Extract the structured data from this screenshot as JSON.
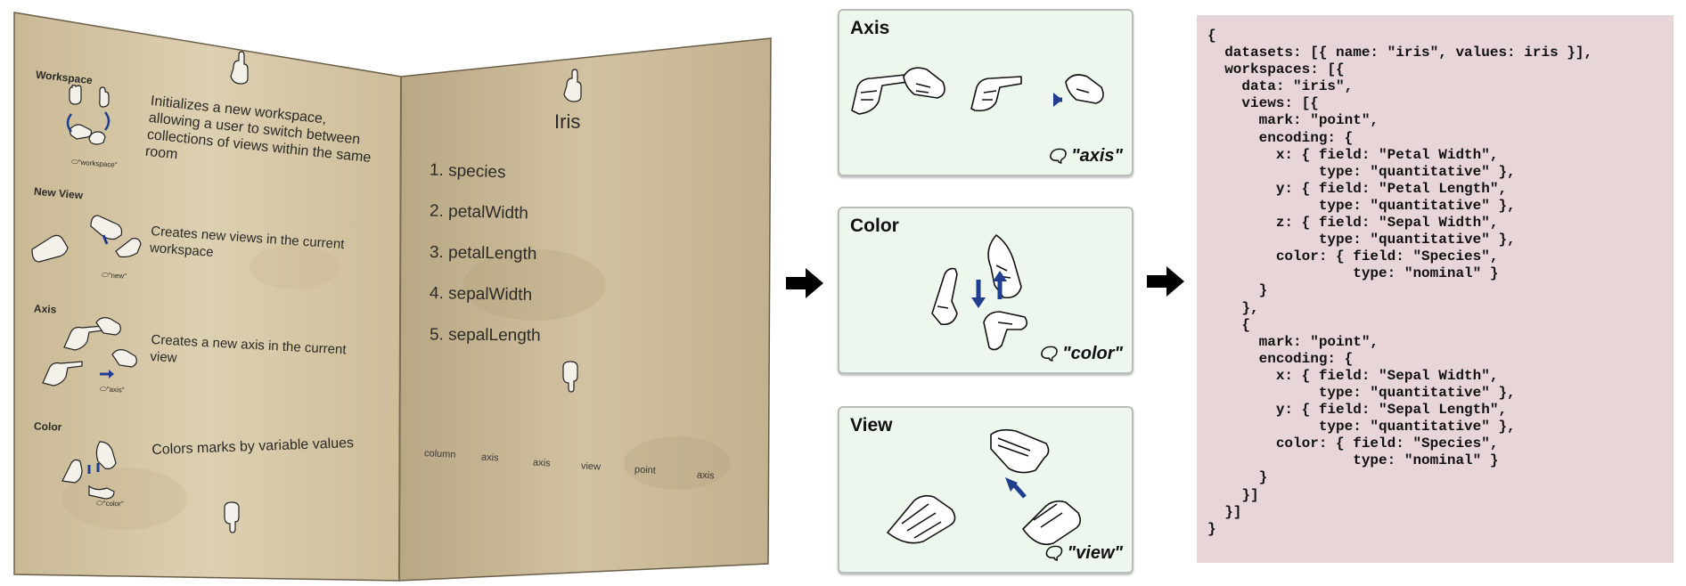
{
  "book": {
    "left_page": {
      "sections": [
        {
          "title": "Workspace",
          "description": "Initializes a new workspace, allowing a user to switch between collections of views within the same room",
          "caption": "\"workspace\""
        },
        {
          "title": "New View",
          "description": "Creates new views in the current workspace",
          "caption": "\"new\""
        },
        {
          "title": "Axis",
          "description": "Creates a new axis in the current view",
          "caption": "\"axis\""
        },
        {
          "title": "Color",
          "description": "Colors marks by variable values",
          "caption": "\"color\""
        }
      ]
    },
    "right_page": {
      "title": "Iris",
      "list": [
        "1. species",
        "2. petalWidth",
        "3. petalLength",
        "4. sepalWidth",
        "5. sepalLength"
      ],
      "bottom_words": [
        "column",
        "axis",
        "axis",
        "view",
        "point",
        "axis"
      ]
    }
  },
  "gesture_cards": [
    {
      "title": "Axis",
      "speech": "\"axis\""
    },
    {
      "title": "Color",
      "speech": "\"color\""
    },
    {
      "title": "View",
      "speech": "\"view\""
    }
  ],
  "spec_code": [
    "{",
    "  datasets: [{ name: \"iris\", values: iris }],",
    "  workspaces: [{",
    "    data: \"iris\",",
    "    views: [{",
    "      mark: \"point\",",
    "      encoding: {",
    "        x: { field: \"Petal Width\",",
    "             type: \"quantitative\" },",
    "        y: { field: \"Petal Length\",",
    "             type: \"quantitative\" },",
    "        z: { field: \"Sepal Width\",",
    "             type: \"quantitative\" },",
    "        color: { field: \"Species\",",
    "                 type: \"nominal\" }",
    "      }",
    "    },",
    "    {",
    "      mark: \"point\",",
    "      encoding: {",
    "        x: { field: \"Sepal Width\",",
    "             type: \"quantitative\" },",
    "        y: { field: \"Sepal Length\",",
    "             type: \"quantitative\" },",
    "        color: { field: \"Species\",",
    "                 type: \"nominal\" }",
    "      }",
    "    }]",
    "  }]",
    "}"
  ],
  "colors": {
    "arrow_blue": "#1f3e8f",
    "card_bg": "#eef7ee",
    "code_bg": "#e8d5d7",
    "parchment_left": "#d9cbaa",
    "parchment_right": "#cdbc98"
  }
}
